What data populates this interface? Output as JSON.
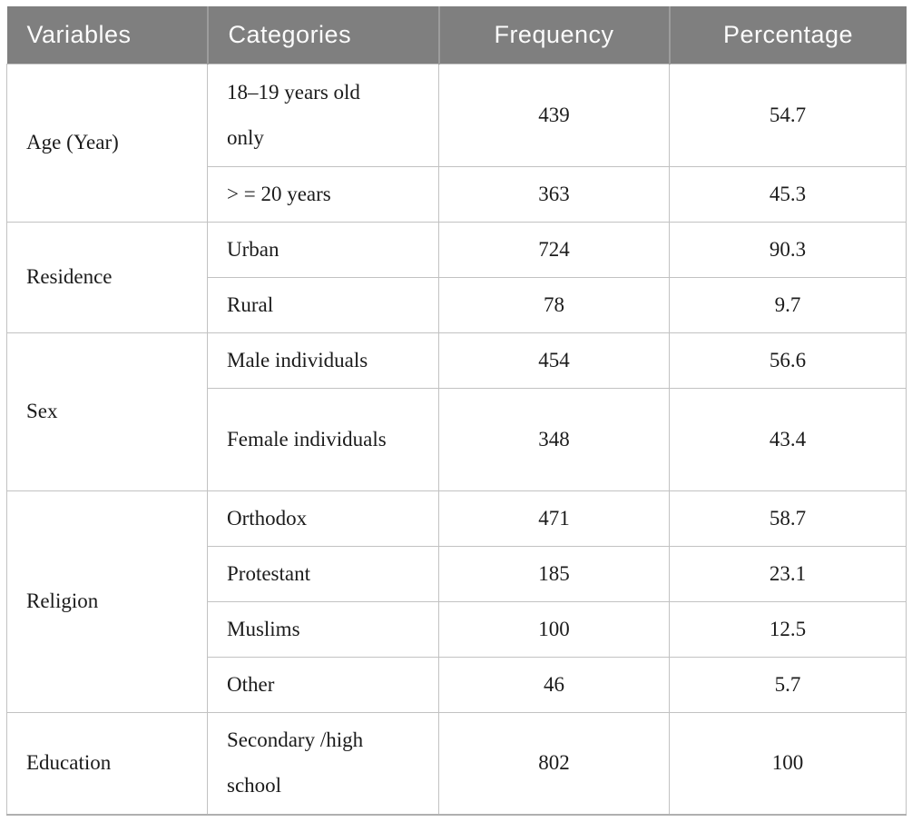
{
  "table": {
    "columns": [
      "Variables",
      "Categories",
      "Frequency",
      "Percentage"
    ],
    "groups": [
      {
        "variable": "Age (Year)",
        "rows": [
          {
            "category": "18–19 years old only",
            "frequency": "439",
            "percentage": "54.7"
          },
          {
            "category": "> = 20 years",
            "frequency": "363",
            "percentage": "45.3"
          }
        ]
      },
      {
        "variable": "Residence",
        "rows": [
          {
            "category": "Urban",
            "frequency": "724",
            "percentage": "90.3"
          },
          {
            "category": "Rural",
            "frequency": "78",
            "percentage": "9.7"
          }
        ]
      },
      {
        "variable": "Sex",
        "rows": [
          {
            "category": "Male individuals",
            "frequency": "454",
            "percentage": "56.6"
          },
          {
            "category": "Female individuals",
            "frequency": "348",
            "percentage": "43.4"
          }
        ]
      },
      {
        "variable": "Religion",
        "rows": [
          {
            "category": "Orthodox",
            "frequency": "471",
            "percentage": "58.7"
          },
          {
            "category": "Protestant",
            "frequency": "185",
            "percentage": "23.1"
          },
          {
            "category": "Muslims",
            "frequency": "100",
            "percentage": "12.5"
          },
          {
            "category": "Other",
            "frequency": "46",
            "percentage": "5.7"
          }
        ]
      },
      {
        "variable": "Education",
        "rows": [
          {
            "category": "Secondary /high school",
            "frequency": "802",
            "percentage": "100"
          }
        ]
      }
    ],
    "colors": {
      "header_bg": "#7f7f7f",
      "header_text": "#fbfbfb",
      "header_divider": "#9c9c9c",
      "cell_border": "#c2c2c2",
      "body_text": "#1b1b1b"
    }
  },
  "chart_data": {
    "type": "table",
    "title": "",
    "columns": [
      "Variables",
      "Categories",
      "Frequency",
      "Percentage"
    ],
    "rows": [
      [
        "Age (Year)",
        "18–19 years old only",
        439,
        54.7
      ],
      [
        "Age (Year)",
        "> = 20 years",
        363,
        45.3
      ],
      [
        "Residence",
        "Urban",
        724,
        90.3
      ],
      [
        "Residence",
        "Rural",
        78,
        9.7
      ],
      [
        "Sex",
        "Male individuals",
        454,
        56.6
      ],
      [
        "Sex",
        "Female individuals",
        348,
        43.4
      ],
      [
        "Religion",
        "Orthodox",
        471,
        58.7
      ],
      [
        "Religion",
        "Protestant",
        185,
        23.1
      ],
      [
        "Religion",
        "Muslims",
        100,
        12.5
      ],
      [
        "Religion",
        "Other",
        46,
        5.7
      ],
      [
        "Education",
        "Secondary /high school",
        802,
        100
      ]
    ]
  }
}
